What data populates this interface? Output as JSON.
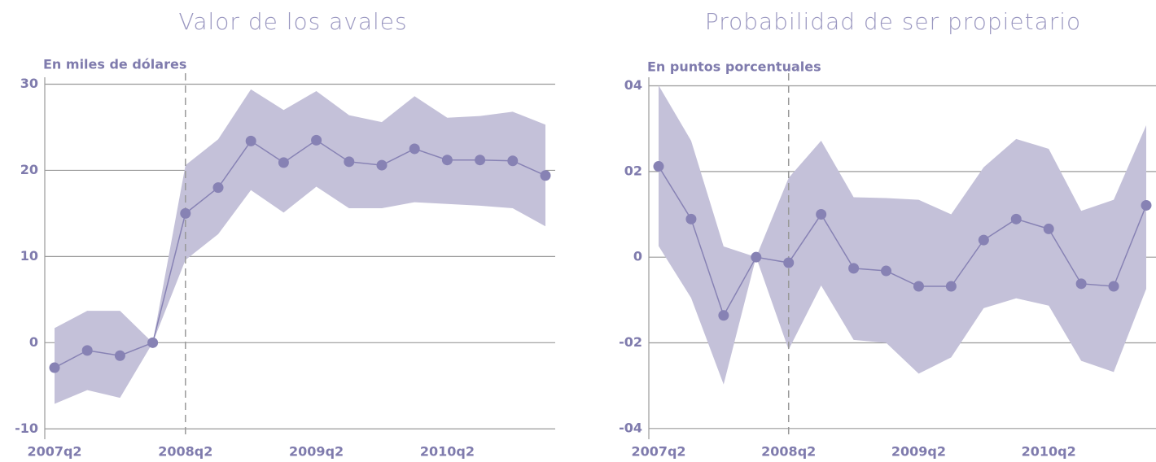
{
  "chart_data": [
    {
      "type": "line",
      "title": "Valor de los avales",
      "y_label": "En miles de dólares",
      "categories": [
        "2007q2",
        null,
        null,
        null,
        "2008q2",
        null,
        null,
        null,
        "2009q2",
        null,
        null,
        null,
        "2010q2",
        null,
        null,
        null
      ],
      "values": [
        -2.9,
        -0.9,
        -1.5,
        0,
        15.0,
        18.0,
        23.4,
        20.9,
        23.5,
        21.0,
        20.6,
        22.5,
        21.2,
        21.2,
        21.1,
        19.4
      ],
      "upper": [
        1.7,
        3.7,
        3.7,
        0,
        20.6,
        23.6,
        29.4,
        27.0,
        29.2,
        26.4,
        25.6,
        28.6,
        26.1,
        26.3,
        26.8,
        25.3
      ],
      "lower": [
        -7.1,
        -5.5,
        -6.4,
        0,
        9.6,
        12.6,
        17.7,
        15.1,
        18.1,
        15.6,
        15.6,
        16.3,
        16.1,
        15.9,
        15.6,
        13.5
      ],
      "color": "#8782b4",
      "band_color": "#c4c1d9",
      "ylim": [
        -11.2,
        30.8
      ],
      "yticks": [
        -10,
        0,
        10,
        20,
        30
      ],
      "grid": true,
      "vline_category": "2008q2"
    },
    {
      "type": "line",
      "title": "Probabilidad de ser propietario",
      "y_label": "En puntos porcentuales",
      "categories": [
        "2007q2",
        null,
        null,
        null,
        "2008q2",
        null,
        null,
        null,
        "2009q2",
        null,
        null,
        null,
        "2010q2",
        null,
        null,
        null
      ],
      "values": [
        0.0212,
        0.0089,
        -0.0136,
        0,
        -0.0013,
        0.01,
        -0.0026,
        -0.0032,
        -0.0068,
        -0.0068,
        0.004,
        0.0089,
        0.0066,
        -0.0062,
        -0.0068,
        0.0121
      ],
      "upper": [
        0.0401,
        0.0272,
        0.0025,
        0,
        0.0185,
        0.0272,
        0.014,
        0.0138,
        0.0134,
        0.01,
        0.021,
        0.0276,
        0.0253,
        0.0108,
        0.0134,
        0.0308
      ],
      "lower": [
        0.0026,
        -0.0095,
        -0.0297,
        0,
        -0.0216,
        -0.0066,
        -0.0193,
        -0.02,
        -0.0272,
        -0.0234,
        -0.0119,
        -0.0096,
        -0.0113,
        -0.0242,
        -0.0268,
        -0.0074
      ],
      "color": "#8782b4",
      "band_color": "#c4c1d9",
      "ylim": [
        -0.0425,
        0.042
      ],
      "yticks": [
        {
          "value": -0.04,
          "label": "-04"
        },
        {
          "value": -0.02,
          "label": "-02"
        },
        0,
        {
          "value": 0.02,
          "label": "02"
        },
        {
          "value": 0.04,
          "label": "04"
        }
      ],
      "grid": true,
      "vline_category": "2008q2"
    }
  ]
}
